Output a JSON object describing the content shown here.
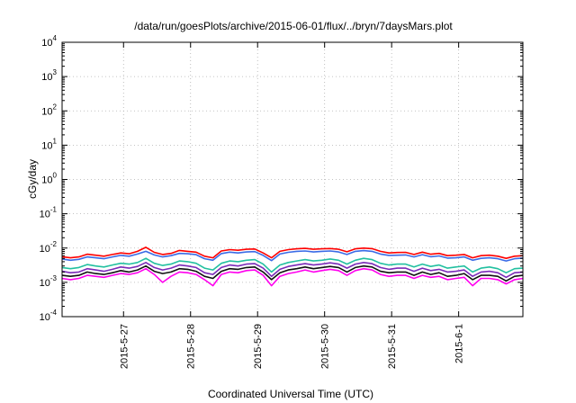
{
  "chart_data": {
    "type": "line",
    "title": "/data/run/goesPlots/archive/2015-06-01/flux/../bryn/7daysMars.plot",
    "xlabel": "Coordinated Universal Time (UTC)",
    "ylabel": "cGy/day",
    "yscale": "log",
    "ylim": [
      0.0001,
      10000
    ],
    "y_ticks": [
      {
        "value": 0.0001,
        "base": "10",
        "exp": "-4"
      },
      {
        "value": 0.001,
        "base": "10",
        "exp": "-3"
      },
      {
        "value": 0.01,
        "base": "10",
        "exp": "-2"
      },
      {
        "value": 0.1,
        "base": "10",
        "exp": "-1"
      },
      {
        "value": 1,
        "base": "10",
        "exp": "0"
      },
      {
        "value": 10,
        "base": "10",
        "exp": "1"
      },
      {
        "value": 100,
        "base": "10",
        "exp": "2"
      },
      {
        "value": 1000,
        "base": "10",
        "exp": "3"
      },
      {
        "value": 10000,
        "base": "10",
        "exp": "4"
      }
    ],
    "x_range": [
      "2015-05-26T02:00",
      "2015-06-01T23:00"
    ],
    "x_ticks": [
      {
        "value": "2015-05-27T00:00",
        "label": "2015-5-27"
      },
      {
        "value": "2015-05-28T00:00",
        "label": "2015-5-28"
      },
      {
        "value": "2015-05-29T00:00",
        "label": "2015-5-29"
      },
      {
        "value": "2015-05-30T00:00",
        "label": "2015-5-30"
      },
      {
        "value": "2015-05-31T00:00",
        "label": "2015-5-31"
      },
      {
        "value": "2015-06-01T00:00",
        "label": "2015-6-1"
      }
    ],
    "grid": true,
    "times": [
      "2015-05-26T02:00",
      "2015-05-26T05:00",
      "2015-05-26T08:00",
      "2015-05-26T11:00",
      "2015-05-26T14:00",
      "2015-05-26T17:00",
      "2015-05-26T20:00",
      "2015-05-26T23:00",
      "2015-05-27T02:00",
      "2015-05-27T05:00",
      "2015-05-27T08:00",
      "2015-05-27T11:00",
      "2015-05-27T14:00",
      "2015-05-27T17:00",
      "2015-05-27T20:00",
      "2015-05-27T23:00",
      "2015-05-28T02:00",
      "2015-05-28T05:00",
      "2015-05-28T08:00",
      "2015-05-28T11:00",
      "2015-05-28T14:00",
      "2015-05-28T17:00",
      "2015-05-28T20:00",
      "2015-05-28T23:00",
      "2015-05-29T02:00",
      "2015-05-29T05:00",
      "2015-05-29T08:00",
      "2015-05-29T11:00",
      "2015-05-29T14:00",
      "2015-05-29T17:00",
      "2015-05-29T20:00",
      "2015-05-29T23:00",
      "2015-05-30T02:00",
      "2015-05-30T05:00",
      "2015-05-30T08:00",
      "2015-05-30T11:00",
      "2015-05-30T14:00",
      "2015-05-30T17:00",
      "2015-05-30T20:00",
      "2015-05-30T23:00",
      "2015-05-31T02:00",
      "2015-05-31T05:00",
      "2015-05-31T08:00",
      "2015-05-31T11:00",
      "2015-05-31T14:00",
      "2015-05-31T17:00",
      "2015-05-31T20:00",
      "2015-05-31T23:00",
      "2015-06-01T02:00",
      "2015-06-01T05:00",
      "2015-06-01T08:00",
      "2015-06-01T11:00",
      "2015-06-01T14:00",
      "2015-06-01T17:00",
      "2015-06-01T20:00",
      "2015-06-01T23:00"
    ],
    "series": [
      {
        "color": "#ff0000",
        "values": [
          0.0056,
          0.0052,
          0.0055,
          0.0066,
          0.0062,
          0.0058,
          0.0065,
          0.0072,
          0.0068,
          0.008,
          0.0105,
          0.0075,
          0.0065,
          0.007,
          0.0085,
          0.008,
          0.0076,
          0.0058,
          0.0052,
          0.0082,
          0.009,
          0.0086,
          0.0092,
          0.0094,
          0.0072,
          0.0052,
          0.008,
          0.009,
          0.0095,
          0.0098,
          0.0092,
          0.0095,
          0.0097,
          0.0092,
          0.0078,
          0.0095,
          0.01,
          0.0096,
          0.008,
          0.0072,
          0.0074,
          0.0075,
          0.0065,
          0.0076,
          0.0066,
          0.007,
          0.006,
          0.0062,
          0.0065,
          0.0052,
          0.006,
          0.0062,
          0.0058,
          0.005,
          0.0058,
          0.006
        ]
      },
      {
        "color": "#3a6be6",
        "values": [
          0.0048,
          0.0044,
          0.0047,
          0.0055,
          0.0052,
          0.0049,
          0.0055,
          0.0061,
          0.0058,
          0.0067,
          0.008,
          0.0063,
          0.0055,
          0.006,
          0.007,
          0.0068,
          0.0064,
          0.0049,
          0.0044,
          0.0069,
          0.0076,
          0.0072,
          0.0077,
          0.0079,
          0.0061,
          0.0043,
          0.0067,
          0.0075,
          0.008,
          0.0082,
          0.0077,
          0.008,
          0.0082,
          0.0077,
          0.0065,
          0.008,
          0.0084,
          0.008,
          0.0067,
          0.0061,
          0.0062,
          0.0063,
          0.0055,
          0.0064,
          0.0056,
          0.0059,
          0.0051,
          0.0052,
          0.0055,
          0.0044,
          0.005,
          0.0052,
          0.0049,
          0.0042,
          0.0049,
          0.0051
        ]
      },
      {
        "color": "#22c0a0",
        "values": [
          0.0027,
          0.0025,
          0.0027,
          0.0033,
          0.003,
          0.0028,
          0.0032,
          0.0036,
          0.0034,
          0.0038,
          0.005,
          0.0036,
          0.0031,
          0.0034,
          0.0042,
          0.004,
          0.0036,
          0.0026,
          0.0023,
          0.0036,
          0.0042,
          0.004,
          0.0044,
          0.0046,
          0.0034,
          0.002,
          0.0032,
          0.0038,
          0.0042,
          0.0046,
          0.0042,
          0.0044,
          0.0048,
          0.0044,
          0.0034,
          0.0044,
          0.005,
          0.0046,
          0.0036,
          0.0032,
          0.0034,
          0.0034,
          0.0028,
          0.0034,
          0.0029,
          0.0032,
          0.0026,
          0.0028,
          0.003,
          0.002,
          0.0026,
          0.0028,
          0.0025,
          0.0019,
          0.0025,
          0.0026
        ]
      },
      {
        "color": "#7a2ab8",
        "values": [
          0.0021,
          0.0019,
          0.002,
          0.0025,
          0.0023,
          0.0021,
          0.0024,
          0.0028,
          0.0026,
          0.0029,
          0.0038,
          0.0027,
          0.0023,
          0.0026,
          0.0032,
          0.003,
          0.0027,
          0.0019,
          0.0017,
          0.0027,
          0.0032,
          0.003,
          0.0034,
          0.0035,
          0.0026,
          0.0015,
          0.0024,
          0.0029,
          0.0032,
          0.0035,
          0.0032,
          0.0034,
          0.0037,
          0.0034,
          0.0026,
          0.0034,
          0.0038,
          0.0035,
          0.0027,
          0.0024,
          0.0026,
          0.0026,
          0.0021,
          0.0026,
          0.0022,
          0.0024,
          0.002,
          0.0021,
          0.0023,
          0.0015,
          0.002,
          0.0021,
          0.0019,
          0.0014,
          0.0019,
          0.002
        ]
      },
      {
        "color": "#111111",
        "values": [
          0.0016,
          0.0015,
          0.0016,
          0.002,
          0.0018,
          0.0017,
          0.0019,
          0.0022,
          0.002,
          0.0023,
          0.003,
          0.0021,
          0.0018,
          0.002,
          0.0025,
          0.0024,
          0.0021,
          0.0015,
          0.0013,
          0.0021,
          0.0025,
          0.0024,
          0.0027,
          0.0028,
          0.002,
          0.0012,
          0.0019,
          0.0023,
          0.0025,
          0.0028,
          0.0025,
          0.0027,
          0.0029,
          0.0027,
          0.002,
          0.0027,
          0.003,
          0.0028,
          0.0021,
          0.0019,
          0.002,
          0.002,
          0.0016,
          0.002,
          0.0017,
          0.0019,
          0.0015,
          0.0016,
          0.0018,
          0.0012,
          0.0016,
          0.0016,
          0.0015,
          0.0011,
          0.0015,
          0.0016
        ]
      },
      {
        "color": "#ff00ee",
        "values": [
          0.0013,
          0.0012,
          0.0013,
          0.0016,
          0.0015,
          0.0014,
          0.0016,
          0.0018,
          0.0017,
          0.0019,
          0.0025,
          0.0017,
          0.001,
          0.0015,
          0.002,
          0.0019,
          0.0017,
          0.0012,
          0.0008,
          0.0017,
          0.002,
          0.0019,
          0.0022,
          0.0023,
          0.0016,
          0.0008,
          0.0015,
          0.0018,
          0.002,
          0.0023,
          0.002,
          0.0022,
          0.0024,
          0.0022,
          0.0016,
          0.0022,
          0.0025,
          0.0023,
          0.0017,
          0.0015,
          0.0016,
          0.0016,
          0.0013,
          0.0016,
          0.0014,
          0.0015,
          0.0012,
          0.0013,
          0.0014,
          0.0008,
          0.0013,
          0.0013,
          0.0012,
          0.0009,
          0.0012,
          0.0013
        ]
      }
    ]
  }
}
